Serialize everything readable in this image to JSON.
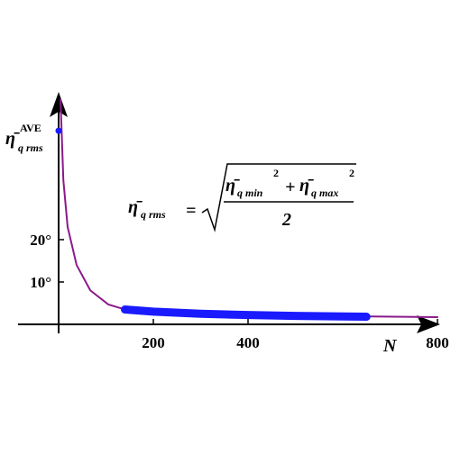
{
  "chart_data": {
    "type": "line",
    "x_label": "N",
    "y_label": {
      "symbol": "η̄",
      "sub": "q rms",
      "sup": "AVE"
    },
    "formula": {
      "lhs": "η̄",
      "lhs_sub": "q rms",
      "eq": "=",
      "t1": "η̄",
      "t1_sub": "q min",
      "t1_sup": "2",
      "plus": "+",
      "t2": "η̄",
      "t2_sub": "q max",
      "t2_sup": "2",
      "den": "2"
    },
    "xlim": [
      0,
      800
    ],
    "ylim": [
      0,
      55.3
    ],
    "xticks": [
      200,
      400,
      800
    ],
    "yticks": [
      {
        "value": 10,
        "label": "10°"
      },
      {
        "value": 20,
        "label": "20°"
      }
    ],
    "series": [
      {
        "color": "#8b1a8b",
        "x": [
          4,
          10,
          19,
          38,
          67,
          105,
          143,
          257,
          448,
          638,
          800
        ],
        "values": [
          53,
          34,
          23,
          14,
          8,
          4.7,
          3.4,
          2.5,
          2.1,
          1.9,
          1.7
        ]
      },
      {
        "color": "#1a1aff",
        "x": [
          140,
          200,
          300,
          400,
          500,
          650
        ],
        "values": [
          3.5,
          3.0,
          2.5,
          2.2,
          2.0,
          1.8
        ]
      },
      {
        "color": "#1a1aff",
        "x": [
          0
        ],
        "values": [
          45.7
        ]
      }
    ]
  }
}
